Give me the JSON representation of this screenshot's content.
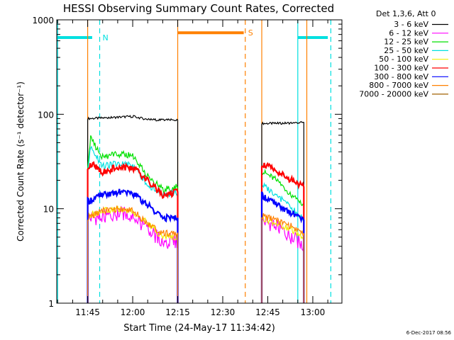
{
  "chart_data": {
    "type": "line",
    "title": "HESSI Observing Summary Count Rates, Corrected",
    "xlabel": "Start Time (24-May-17 11:34:42)",
    "ylabel": "Corrected Count Rate (s⁻¹ detector⁻¹)",
    "yscale": "log",
    "ylim": [
      1,
      1000
    ],
    "xlim": [
      "11:34:42",
      "13:09:42"
    ],
    "y_ticks": [
      "1",
      "10",
      "100",
      "1000"
    ],
    "x_ticks": [
      "11:45",
      "12:00",
      "12:15",
      "12:30",
      "12:45",
      "13:00"
    ],
    "legend_title": "Det 1,3,6, Att 0",
    "legend_placement": "right",
    "timestamp": "6-Dec-2017 08:56",
    "grid": false,
    "series": [
      {
        "name": "3 - 6 keV",
        "color": "#000000",
        "segments": [
          {
            "x": [
              "11:45:00",
              "11:52:00",
              "12:00:00",
              "12:05:00",
              "12:10:00",
              "12:15:00"
            ],
            "y": [
              90,
              92,
              95,
              88,
              87,
              87
            ]
          },
          {
            "x": [
              "12:43:00",
              "12:48:00",
              "12:53:00",
              "12:57:00"
            ],
            "y": [
              80,
              80,
              81,
              82
            ]
          }
        ]
      },
      {
        "name": "6 - 12 keV",
        "color": "#ff00ff",
        "segments": [
          {
            "x": [
              "11:45:00",
              "11:50:00",
              "11:55:00",
              "12:00:00",
              "12:05:00",
              "12:10:00",
              "12:15:00"
            ],
            "y": [
              8,
              8,
              9,
              8.5,
              6,
              4.5,
              4.5
            ]
          },
          {
            "x": [
              "12:43:00",
              "12:48:00",
              "12:53:00",
              "12:57:00"
            ],
            "y": [
              7.5,
              6.5,
              5,
              4
            ]
          }
        ]
      },
      {
        "name": "12 - 25 keV",
        "color": "#00e000",
        "segments": [
          {
            "x": [
              "11:45:00",
              "11:46:00",
              "11:50:00",
              "11:55:00",
              "12:00:00",
              "12:05:00",
              "12:10:00",
              "12:15:00"
            ],
            "y": [
              30,
              55,
              35,
              38,
              37,
              22,
              16,
              17
            ]
          },
          {
            "x": [
              "12:43:00",
              "12:48:00",
              "12:53:00",
              "12:57:00"
            ],
            "y": [
              25,
              20,
              14,
              11
            ]
          }
        ]
      },
      {
        "name": "25 - 50 keV",
        "color": "#00e0e0",
        "segments": [
          {
            "x": [
              "11:45:00",
              "11:46:00",
              "11:50:00",
              "11:55:00",
              "12:00:00",
              "12:05:00",
              "12:10:00",
              "12:15:00"
            ],
            "y": [
              25,
              45,
              28,
              30,
              29,
              18,
              14,
              15
            ]
          },
          {
            "x": [
              "12:43:00",
              "12:48:00",
              "12:53:00",
              "12:57:00"
            ],
            "y": [
              18,
              14,
              10,
              8
            ]
          }
        ]
      },
      {
        "name": "50 - 100 keV",
        "color": "#f0f000",
        "segments": [
          {
            "x": [
              "11:45:00",
              "11:50:00",
              "11:55:00",
              "12:00:00",
              "12:05:00",
              "12:10:00",
              "12:15:00"
            ],
            "y": [
              8.5,
              9.5,
              10,
              9.5,
              7,
              5,
              5
            ]
          },
          {
            "x": [
              "12:43:00",
              "12:48:00",
              "12:53:00",
              "12:57:00"
            ],
            "y": [
              8,
              7,
              6,
              5
            ]
          }
        ]
      },
      {
        "name": "100 - 300 keV",
        "color": "#ff0000",
        "segments": [
          {
            "x": [
              "11:45:00",
              "11:47:00",
              "11:50:00",
              "11:55:00",
              "12:00:00",
              "12:05:00",
              "12:10:00",
              "12:15:00"
            ],
            "y": [
              28,
              30,
              24,
              28,
              27,
              20,
              14,
              15
            ]
          },
          {
            "x": [
              "12:43:00",
              "12:48:00",
              "12:53:00",
              "12:57:00"
            ],
            "y": [
              30,
              25,
              20,
              17
            ]
          }
        ]
      },
      {
        "name": "300 - 800 keV",
        "color": "#0000ff",
        "segments": [
          {
            "x": [
              "11:45:00",
              "11:50:00",
              "11:55:00",
              "12:00:00",
              "12:05:00",
              "12:10:00",
              "12:15:00"
            ],
            "y": [
              12,
              14,
              15,
              14.5,
              11,
              8,
              8
            ]
          },
          {
            "x": [
              "12:43:00",
              "12:48:00",
              "12:53:00",
              "12:57:00"
            ],
            "y": [
              14,
              11,
              9,
              7.5
            ]
          }
        ]
      },
      {
        "name": "800 - 7000 keV",
        "color": "#ff8000",
        "segments": [
          {
            "x": [
              "11:45:00",
              "11:50:00",
              "11:55:00",
              "12:00:00",
              "12:05:00",
              "12:10:00",
              "12:15:00"
            ],
            "y": [
              8,
              9.5,
              10,
              9.5,
              7,
              5.5,
              5.5
            ]
          },
          {
            "x": [
              "12:43:00",
              "12:48:00",
              "12:53:00",
              "12:57:00"
            ],
            "y": [
              8.5,
              7.5,
              6.5,
              5.5
            ]
          }
        ]
      },
      {
        "name": "7000 - 20000 keV",
        "color": "#a06000",
        "segments": []
      }
    ],
    "flag_bars": [
      {
        "label": "N",
        "color": "#00e0e0",
        "y": 650,
        "segments": [
          [
            "11:34:42",
            "11:46:30"
          ],
          [
            "12:55:00",
            "13:05:00"
          ]
        ],
        "dashed_markers": [
          "11:49:00",
          "13:06:00"
        ]
      },
      {
        "label": "S",
        "color": "#ff8000",
        "y": 730,
        "segments": [
          [
            "12:15:00",
            "12:37:00"
          ]
        ],
        "dashed_markers": [
          "12:37:30"
        ]
      }
    ],
    "boundary_lines": [
      {
        "color": "#00e0e0",
        "x": [
          "11:35:00",
          "12:55:00"
        ]
      },
      {
        "color": "#ff8000",
        "x": [
          "11:45:00",
          "12:15:00",
          "12:43:00",
          "12:58:00"
        ]
      }
    ]
  }
}
